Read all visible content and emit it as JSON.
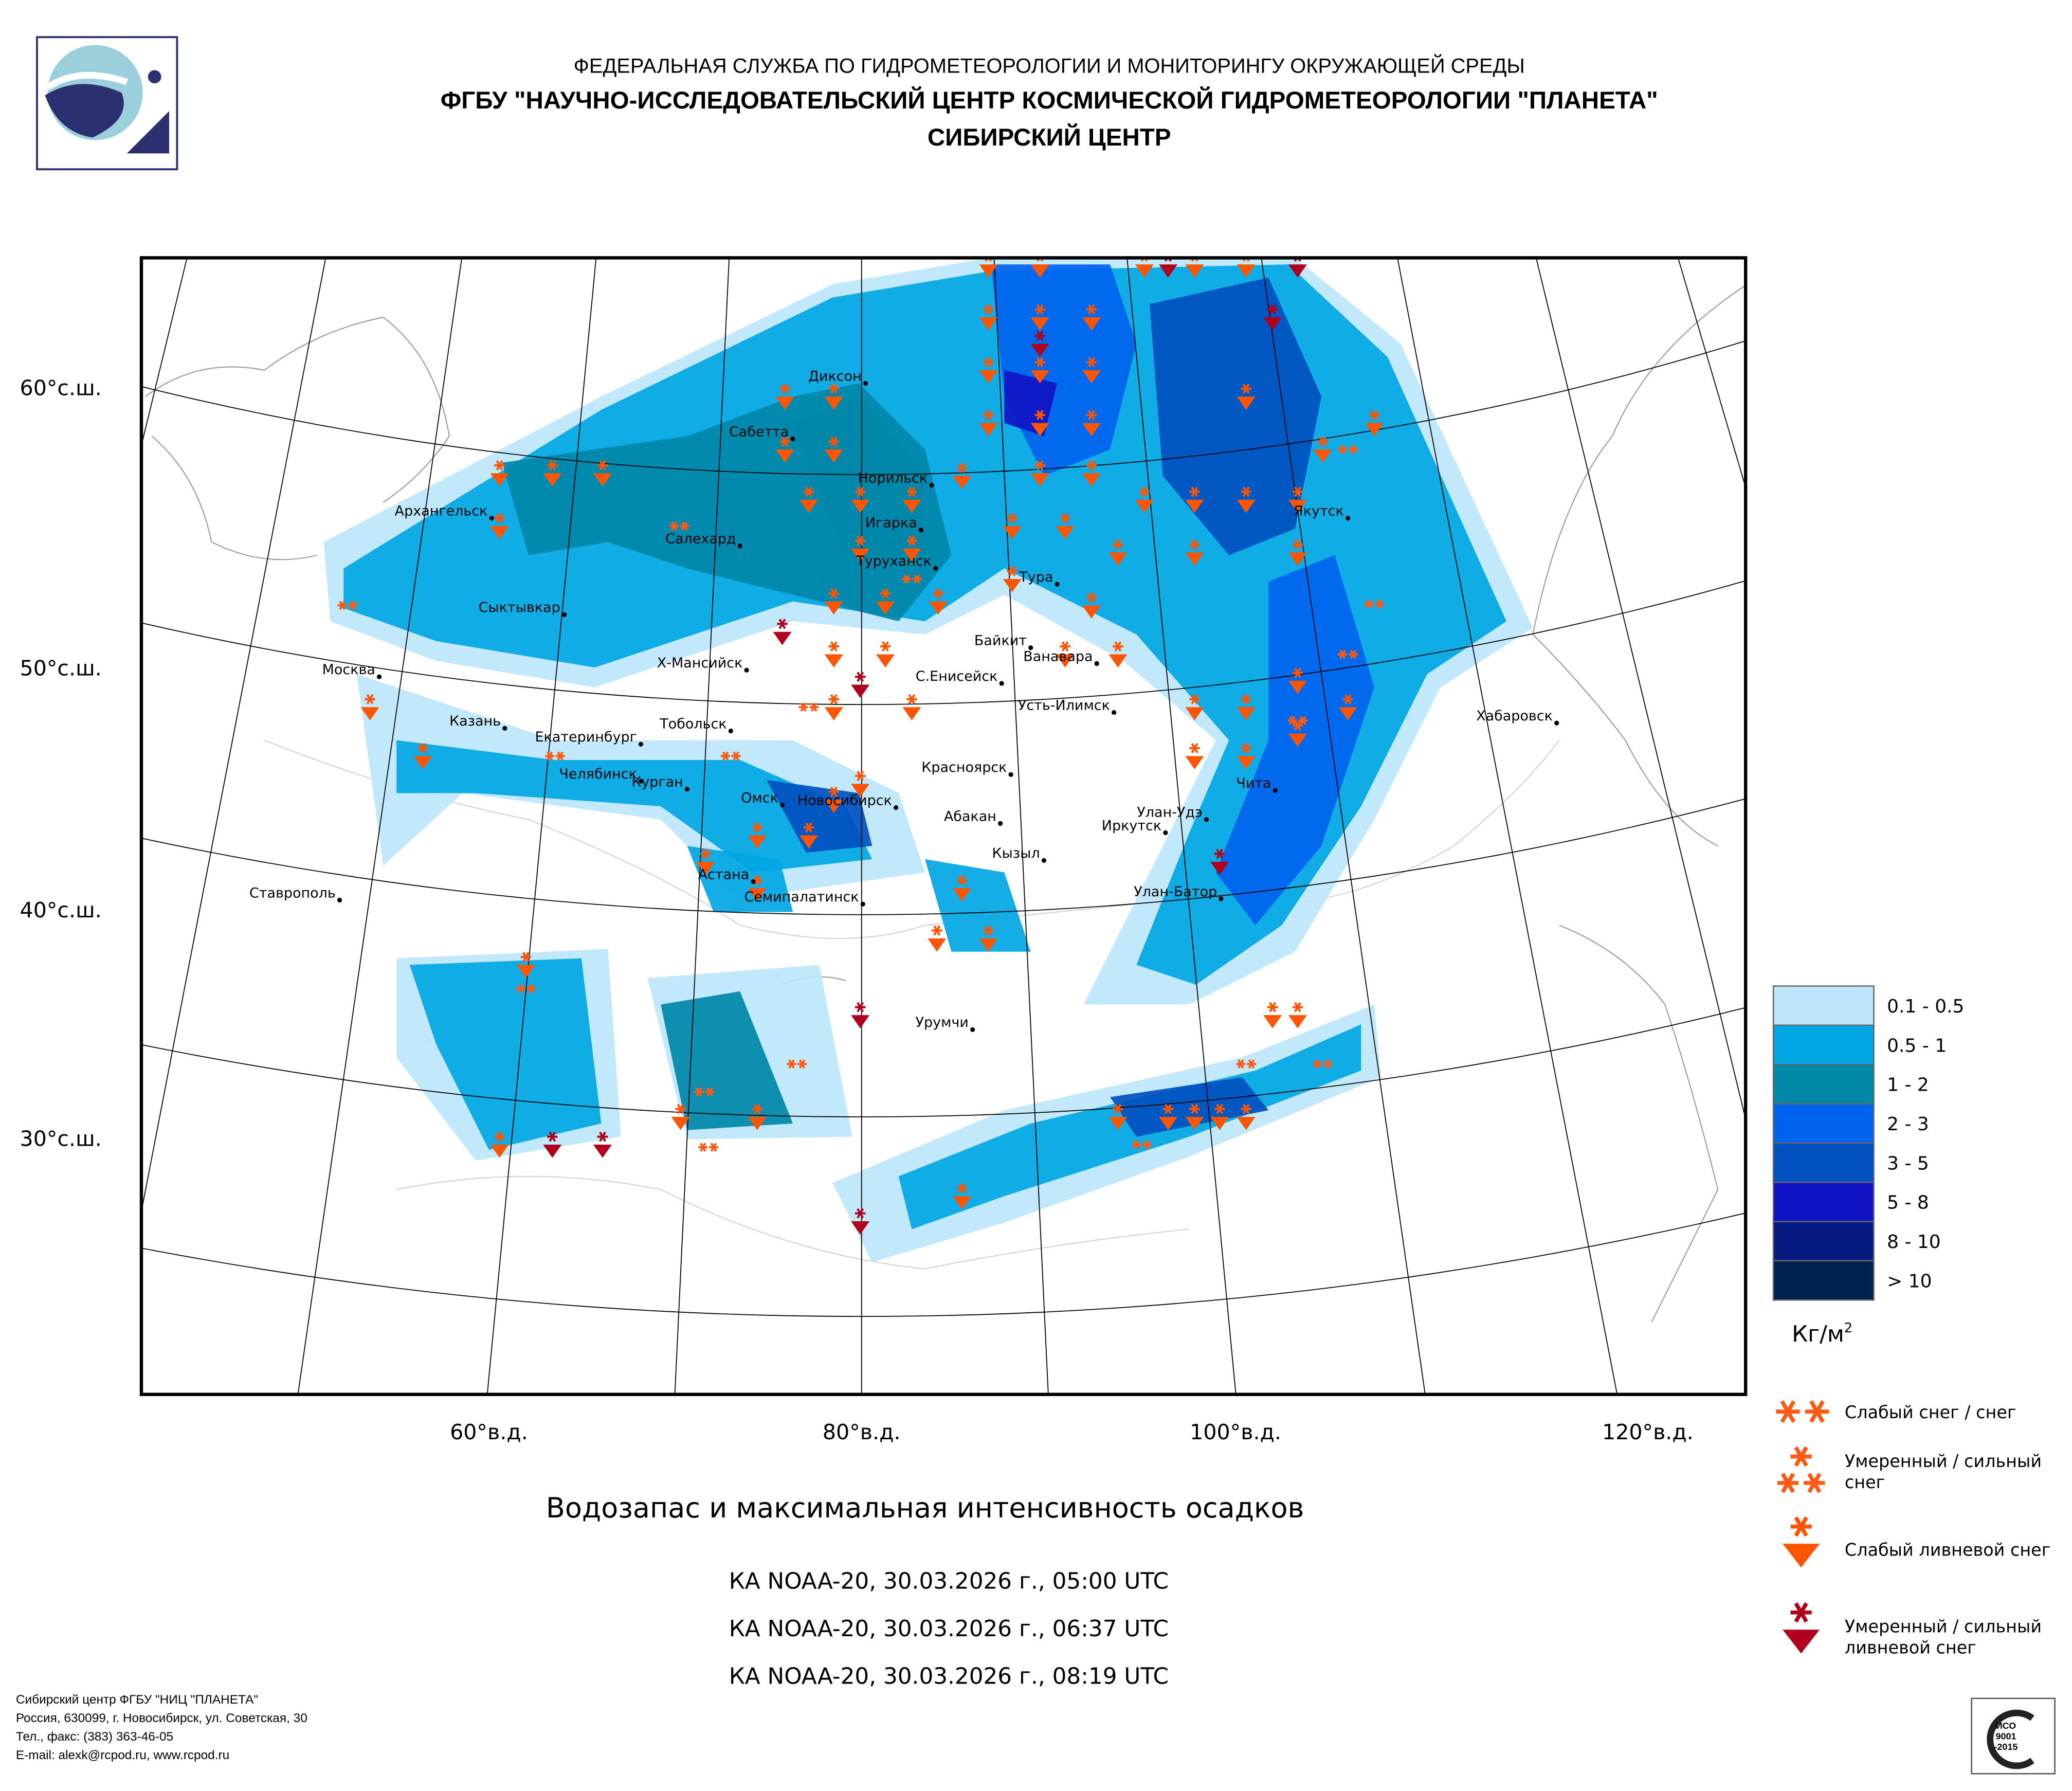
{
  "header": {
    "line1": "ФЕДЕРАЛЬНАЯ СЛУЖБА ПО ГИДРОМЕТЕОРОЛОГИИ И МОНИТОРИНГУ ОКРУЖАЮЩЕЙ СРЕДЫ",
    "line2": "ФГБУ \"НАУЧНО-ИССЛЕДОВАТЕЛЬСКИЙ ЦЕНТР КОСМИЧЕСКОЙ ГИДРОМЕТЕОРОЛОГИИ \"ПЛАНЕТА\"",
    "line3": "СИБИРСКИЙ ЦЕНТР"
  },
  "map": {
    "lat_labels": [
      "60°с.ш.",
      "50°с.ш.",
      "40°с.ш.",
      "30°с.ш."
    ],
    "lon_labels": [
      "60°в.д.",
      "80°в.д.",
      "100°в.д.",
      "120°в.д."
    ],
    "cities": [
      "Диксон",
      "Сабетта",
      "Норильск",
      "Архангельск",
      "Игарка",
      "Салехард",
      "Туруханск",
      "Тура",
      "Якутск",
      "Сыктывкар",
      "Байкит",
      "Ванавара",
      "Москва",
      "Х-Мансийск",
      "С.Енисейск",
      "Усть-Илимск",
      "Хабаровск",
      "Казань",
      "Тобольск",
      "Екатеринбург",
      "Красноярск",
      "Челябинск",
      "Курган",
      "Чита",
      "Омск",
      "Новосибирск",
      "Улан-Удэ",
      "Абакан",
      "Иркутск",
      "Кызыл",
      "Астана",
      "Ставрополь",
      "Семипалатинск",
      "Улан-Батор",
      "Урумчи"
    ]
  },
  "legend": {
    "classes": [
      {
        "label": "0.1 - 0.5",
        "color": "#bde6fb"
      },
      {
        "label": "0.5 - 1",
        "color": "#00a6e3"
      },
      {
        "label": "1 - 2",
        "color": "#0087a8"
      },
      {
        "label": "2 - 3",
        "color": "#0063ee"
      },
      {
        "label": "3 - 5",
        "color": "#0050c0"
      },
      {
        "label": "5 - 8",
        "color": "#1014c4"
      },
      {
        "label": "8 - 10",
        "color": "#061a82"
      },
      {
        "label": "> 10",
        "color": "#002250"
      }
    ],
    "unit": "Кг/м",
    "unit_sup": "2",
    "symbols": [
      {
        "line1": "Слабый снег / снег",
        "line2": "",
        "icon": "light-snow-icon",
        "color": "#ff5a14"
      },
      {
        "line1": "Умеренный / сильный",
        "line2": "снег",
        "icon": "heavy-snow-icon",
        "color": "#ff5a14"
      },
      {
        "line1": "Слабый ливневой снег",
        "line2": "",
        "icon": "light-snow-shower-icon",
        "color": "#ff5500"
      },
      {
        "line1": "Умеренный / сильный",
        "line2": "ливневой снег",
        "icon": "heavy-snow-shower-icon",
        "color": "#b0001e"
      }
    ]
  },
  "title": {
    "main": "Водозапас и максимальная интенсивность осадков",
    "passes": [
      "КА NOAA-20, 30.03.2026 г., 05:00 UTC",
      "КА NOAA-20, 30.03.2026 г., 06:37 UTC",
      "КА NOAA-20, 30.03.2026 г., 08:19 UTC"
    ]
  },
  "footer": {
    "lines": [
      "Сибирский центр ФГБУ \"НИЦ \"ПЛАНЕТА\"",
      "Россия, 630099, г. Новосибирск, ул. Советская, 30",
      "Тел., факс: (383) 363-46-05",
      "E-mail: alexk@rcpod.ru, www.rcpod.ru"
    ],
    "cert": [
      "ИСО",
      "9001",
      "-2015"
    ]
  }
}
